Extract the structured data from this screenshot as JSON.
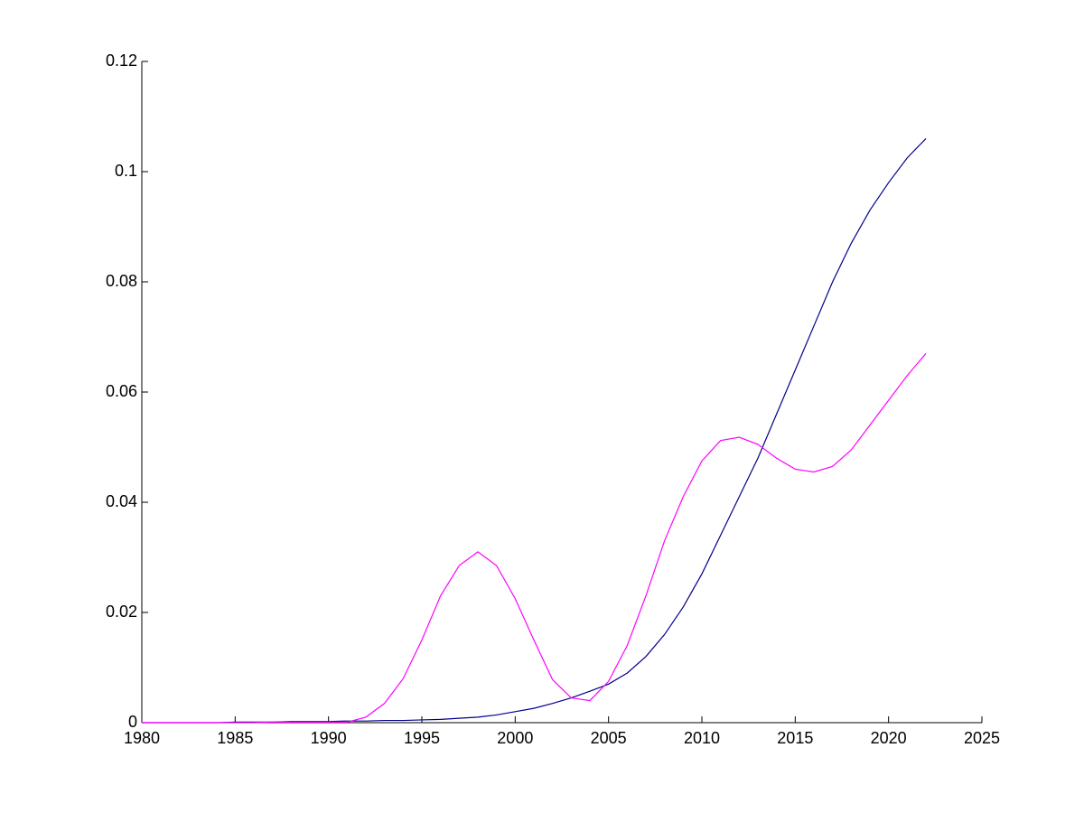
{
  "chart_data": {
    "type": "line",
    "x": [
      1980,
      1981,
      1982,
      1983,
      1984,
      1985,
      1986,
      1987,
      1988,
      1989,
      1990,
      1991,
      1992,
      1993,
      1994,
      1995,
      1996,
      1997,
      1998,
      1999,
      2000,
      2001,
      2002,
      2003,
      2004,
      2005,
      2006,
      2007,
      2008,
      2009,
      2010,
      2011,
      2012,
      2013,
      2014,
      2015,
      2016,
      2017,
      2018,
      2019,
      2020,
      2021,
      2022
    ],
    "series": [
      {
        "color": "#00008b",
        "values": [
          0,
          0,
          0,
          0,
          0,
          0.0001,
          0.0001,
          0.0001,
          0.0002,
          0.0002,
          0.0002,
          0.0003,
          0.0003,
          0.0004,
          0.0004,
          0.0005,
          0.0006,
          0.0008,
          0.001,
          0.0014,
          0.002,
          0.0026,
          0.0035,
          0.0045,
          0.0057,
          0.007,
          0.009,
          0.012,
          0.016,
          0.021,
          0.027,
          0.034,
          0.041,
          0.048,
          0.056,
          0.064,
          0.072,
          0.08,
          0.087,
          0.093,
          0.098,
          0.1025,
          0.106
        ]
      },
      {
        "color": "#ff00ff",
        "values": [
          0,
          0,
          0,
          0,
          0,
          0,
          0,
          0.0001,
          0.0001,
          0.0001,
          0.0001,
          0.0001,
          0.001,
          0.0035,
          0.008,
          0.015,
          0.023,
          0.0285,
          0.031,
          0.0285,
          0.0225,
          0.015,
          0.0078,
          0.0045,
          0.004,
          0.0075,
          0.014,
          0.023,
          0.033,
          0.041,
          0.0475,
          0.0512,
          0.0518,
          0.0505,
          0.048,
          0.046,
          0.0455,
          0.0465,
          0.0495,
          0.054,
          0.0585,
          0.063,
          0.067
        ]
      }
    ],
    "xlim": [
      1980,
      2025
    ],
    "xticks": [
      1980,
      1985,
      1990,
      1995,
      2000,
      2005,
      2010,
      2015,
      2020,
      2025
    ],
    "ylim": [
      0,
      0.12
    ],
    "yticks": [
      0,
      0.02,
      0.04,
      0.06,
      0.08,
      0.1,
      0.12
    ]
  }
}
